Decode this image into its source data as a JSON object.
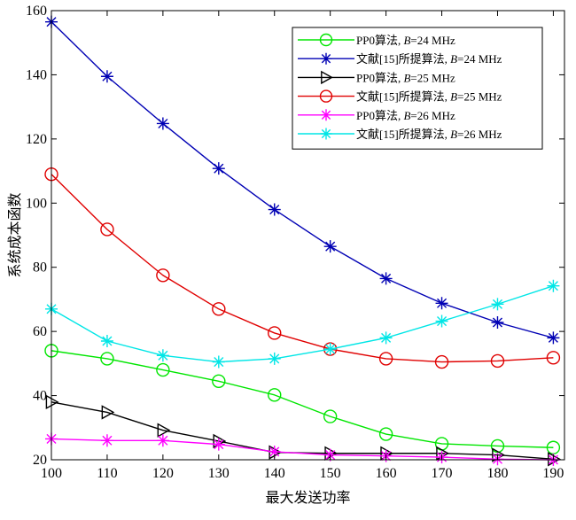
{
  "chart_data": {
    "type": "line",
    "title": "",
    "xlabel": "最大发送功率",
    "ylabel": "系统成本函数",
    "xlim": [
      100,
      192
    ],
    "ylim": [
      20,
      160
    ],
    "xticks": [
      100,
      110,
      120,
      130,
      140,
      150,
      160,
      170,
      180,
      190
    ],
    "yticks": [
      20,
      40,
      60,
      80,
      100,
      120,
      140,
      160
    ],
    "grid": false,
    "legend_position": "top-right",
    "x": [
      100,
      110,
      120,
      130,
      140,
      150,
      160,
      170,
      180,
      190
    ],
    "series": [
      {
        "name": "PP0算法, B=24 MHz",
        "label_parts": {
          "prefix": "PP0算法, ",
          "var": "B",
          "suffix": "=24 MHz"
        },
        "color": "#00e600",
        "marker": "circle",
        "values": [
          54.0,
          51.5,
          48.0,
          44.5,
          40.2,
          33.5,
          28.0,
          25.0,
          24.3,
          23.8
        ]
      },
      {
        "name": "文献[15]所提算法, B=24 MHz",
        "label_parts": {
          "prefix": "文献[15]所提算法, ",
          "var": "B",
          "suffix": "=24 MHz"
        },
        "color": "#0000b4",
        "marker": "asterisk",
        "values": [
          156.5,
          139.5,
          124.8,
          110.8,
          98.0,
          86.5,
          76.5,
          68.8,
          62.8,
          58.0
        ]
      },
      {
        "name": "PP0算法, B=25 MHz",
        "label_parts": {
          "prefix": "PP0算法, ",
          "var": "B",
          "suffix": "=25 MHz"
        },
        "color": "#000000",
        "marker": "triangle-right",
        "values": [
          38.0,
          34.8,
          29.2,
          25.8,
          22.3,
          22.0,
          22.0,
          22.0,
          21.5,
          20.2
        ]
      },
      {
        "name": "文献[15]所提算法, B=25 MHz",
        "label_parts": {
          "prefix": "文献[15]所提算法, ",
          "var": "B",
          "suffix": "=25 MHz"
        },
        "color": "#e00000",
        "marker": "circle",
        "values": [
          109.0,
          91.8,
          77.5,
          67.0,
          59.5,
          54.5,
          51.5,
          50.5,
          50.8,
          51.8
        ]
      },
      {
        "name": "PP0算法, B=26 MHz",
        "label_parts": {
          "prefix": "PP0算法, ",
          "var": "B",
          "suffix": "=26 MHz"
        },
        "color": "#ff00ff",
        "marker": "asterisk",
        "values": [
          26.5,
          26.0,
          26.0,
          24.8,
          22.5,
          21.5,
          21.2,
          20.8,
          20.2,
          20.0
        ]
      },
      {
        "name": "文献[15]所提算法, B=26 MHz",
        "label_parts": {
          "prefix": "文献[15]所提算法, ",
          "var": "B",
          "suffix": "=26 MHz"
        },
        "color": "#00e6e6",
        "marker": "asterisk",
        "values": [
          67.0,
          57.0,
          52.5,
          50.5,
          51.5,
          54.5,
          58.0,
          63.2,
          68.5,
          74.2
        ]
      }
    ]
  }
}
